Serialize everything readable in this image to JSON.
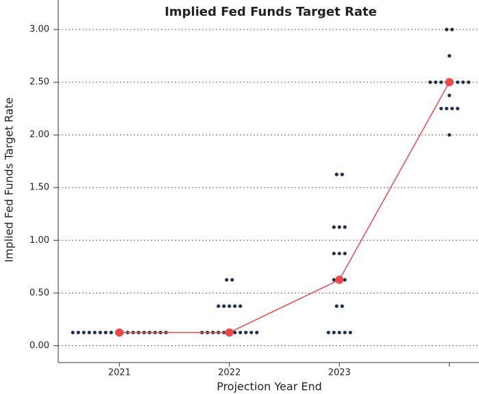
{
  "chart_data": {
    "type": "dot",
    "title": "Implied Fed Funds Target Rate",
    "y_label": "Implied Fed Funds Target Rate",
    "x_label": "Projection Year End",
    "categories": [
      "2021",
      "2022",
      "2023",
      null
    ],
    "dots": [
      [
        0.125,
        0.125,
        0.125,
        0.125,
        0.125,
        0.125,
        0.125,
        0.125,
        0.125,
        0.125,
        0.125,
        0.125,
        0.125,
        0.125,
        0.125,
        0.125,
        0.125,
        0.125
      ],
      [
        0.125,
        0.125,
        0.125,
        0.125,
        0.125,
        0.125,
        0.125,
        0.125,
        0.125,
        0.125,
        0.125,
        0.375,
        0.375,
        0.375,
        0.375,
        0.375,
        0.625,
        0.625
      ],
      [
        0.125,
        0.125,
        0.125,
        0.125,
        0.125,
        0.375,
        0.375,
        0.625,
        0.625,
        0.625,
        0.875,
        0.875,
        0.875,
        1.125,
        1.125,
        1.125,
        1.625,
        1.625
      ],
      [
        2.0,
        2.25,
        2.25,
        2.25,
        2.25,
        2.375,
        2.5,
        2.5,
        2.5,
        2.5,
        2.5,
        2.5,
        2.5,
        2.5,
        2.75,
        3.0,
        3.0
      ]
    ],
    "dot_color": "#1f2d4f",
    "median": [
      0.125,
      0.125,
      0.625,
      2.5
    ],
    "median_color": "#f04848",
    "ylim": [
      -0.16,
      3.28
    ],
    "yticks": [
      {
        "value": 0,
        "label": "0.00"
      },
      {
        "value": 0.5,
        "label": "0.50"
      },
      {
        "value": 1,
        "label": "1.00"
      },
      {
        "value": 1.5,
        "label": "1.50"
      },
      {
        "value": 2,
        "label": "2.00"
      },
      {
        "value": 2.5,
        "label": "2.50"
      },
      {
        "value": 3,
        "label": "3.00"
      }
    ],
    "grid": true
  }
}
